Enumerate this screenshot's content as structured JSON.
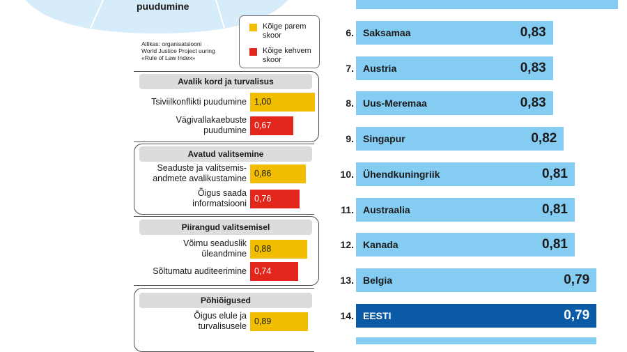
{
  "colors": {
    "best": "#f0bd00",
    "worst": "#e3261b",
    "country_bar": "#84ccf2",
    "highlight_bar": "#0b5aa6",
    "circle": "#d7ecfa"
  },
  "circle_label": "puudumine",
  "legend": {
    "best_label": "Kõige parem\nskoor",
    "worst_label": "Kõige kehvem\nskoor"
  },
  "source": "Allikas: organisatsiooni\nWorld Justice Project uuring\n«Rule of Law Index»",
  "chart_data": [
    {
      "type": "bar",
      "orientation": "horizontal",
      "title": "",
      "xlim": [
        0,
        1
      ],
      "groups": [
        {
          "name": "Avalik kord ja turvalisus",
          "items": [
            {
              "label": "Tsiviilkonflikti puudumine",
              "value": 1.0,
              "value_text": "1,00",
              "kind": "best"
            },
            {
              "label": "Vägivallakaebuste\npuudumine",
              "value": 0.67,
              "value_text": "0,67",
              "kind": "worst"
            }
          ]
        },
        {
          "name": "Avatud valitsemine",
          "items": [
            {
              "label": "Seaduste ja valitsemis-\nandmete avalikustamine",
              "value": 0.86,
              "value_text": "0,86",
              "kind": "best"
            },
            {
              "label": "Õigus saada\ninformatsiooni",
              "value": 0.76,
              "value_text": "0,76",
              "kind": "worst"
            }
          ]
        },
        {
          "name": "Piirangud valitsemisel",
          "items": [
            {
              "label": "Võimu seaduslik\nüleandmine",
              "value": 0.88,
              "value_text": "0,88",
              "kind": "best"
            },
            {
              "label": "Sõltumatu auditeerimine",
              "value": 0.74,
              "value_text": "0,74",
              "kind": "worst"
            }
          ]
        },
        {
          "name": "Põhiõigused",
          "items": [
            {
              "label": "Õigus elule ja\nturvalisusele",
              "value": 0.89,
              "value_text": "0,89",
              "kind": "best"
            }
          ]
        }
      ]
    },
    {
      "type": "bar",
      "orientation": "horizontal",
      "title": "",
      "xlim": [
        0,
        1
      ],
      "categories": [
        "Saksamaa",
        "Austria",
        "Uus-Meremaa",
        "Singapur",
        "Ühendkuningriik",
        "Austraalia",
        "Kanada",
        "Belgia",
        "EESTI"
      ],
      "ranks": [
        "6.",
        "7.",
        "8.",
        "9.",
        "10.",
        "11.",
        "12.",
        "13.",
        "14."
      ],
      "values": [
        0.83,
        0.83,
        0.83,
        0.82,
        0.81,
        0.81,
        0.81,
        0.79,
        0.79
      ],
      "value_labels": [
        "0,83",
        "0,83",
        "0,83",
        "0,82",
        "0,81",
        "0,81",
        "0,81",
        "0,79",
        "0,79"
      ],
      "highlight": "EESTI"
    }
  ]
}
